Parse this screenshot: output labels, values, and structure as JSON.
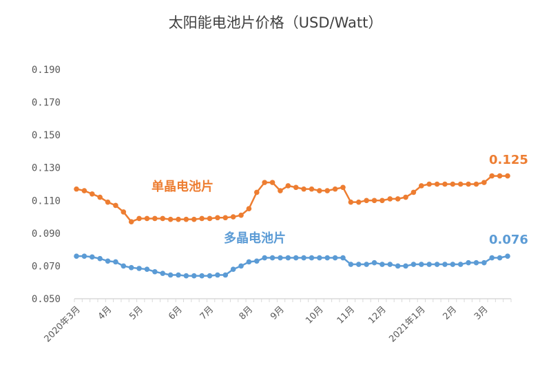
{
  "chart_data": {
    "type": "line",
    "title": "太阳能电池片价格（USD/Watt）",
    "ylim": [
      0.05,
      0.19
    ],
    "yticks": [
      "0.050",
      "0.070",
      "0.090",
      "0.110",
      "0.130",
      "0.150",
      "0.170",
      "0.190"
    ],
    "grid": false,
    "month_labels": [
      {
        "label": "2020年3月",
        "index": 0
      },
      {
        "label": "4月",
        "index": 4
      },
      {
        "label": "5月",
        "index": 8
      },
      {
        "label": "6月",
        "index": 13
      },
      {
        "label": "7月",
        "index": 17
      },
      {
        "label": "8月",
        "index": 22
      },
      {
        "label": "9月",
        "index": 26
      },
      {
        "label": "10月",
        "index": 31
      },
      {
        "label": "11月",
        "index": 35
      },
      {
        "label": "12月",
        "index": 39
      },
      {
        "label": "2021年1月",
        "index": 44
      },
      {
        "label": "2月",
        "index": 48
      },
      {
        "label": "3月",
        "index": 52
      }
    ],
    "series": [
      {
        "name": "单晶电池片",
        "color": "#ED7D31",
        "end_label": "0.125",
        "values": [
          0.117,
          0.116,
          0.114,
          0.112,
          0.109,
          0.107,
          0.103,
          0.097,
          0.099,
          0.099,
          0.099,
          0.099,
          0.0985,
          0.0985,
          0.0985,
          0.0985,
          0.099,
          0.099,
          0.0995,
          0.0995,
          0.1,
          0.101,
          0.105,
          0.115,
          0.121,
          0.121,
          0.116,
          0.119,
          0.118,
          0.117,
          0.117,
          0.116,
          0.116,
          0.117,
          0.118,
          0.109,
          0.109,
          0.11,
          0.11,
          0.11,
          0.111,
          0.111,
          0.112,
          0.115,
          0.119,
          0.12,
          0.12,
          0.12,
          0.12,
          0.12,
          0.12,
          0.12,
          0.121,
          0.125,
          0.125,
          0.125
        ]
      },
      {
        "name": "多晶电池片",
        "color": "#5B9BD5",
        "end_label": "0.076",
        "values": [
          0.076,
          0.076,
          0.0755,
          0.0745,
          0.073,
          0.0725,
          0.07,
          0.069,
          0.0685,
          0.068,
          0.0665,
          0.0655,
          0.0645,
          0.0645,
          0.064,
          0.064,
          0.064,
          0.064,
          0.0645,
          0.0645,
          0.068,
          0.07,
          0.0725,
          0.073,
          0.075,
          0.075,
          0.075,
          0.075,
          0.075,
          0.075,
          0.075,
          0.075,
          0.075,
          0.075,
          0.075,
          0.071,
          0.071,
          0.071,
          0.072,
          0.071,
          0.071,
          0.07,
          0.07,
          0.071,
          0.071,
          0.071,
          0.071,
          0.071,
          0.071,
          0.071,
          0.072,
          0.072,
          0.072,
          0.075,
          0.075,
          0.076
        ]
      }
    ]
  }
}
